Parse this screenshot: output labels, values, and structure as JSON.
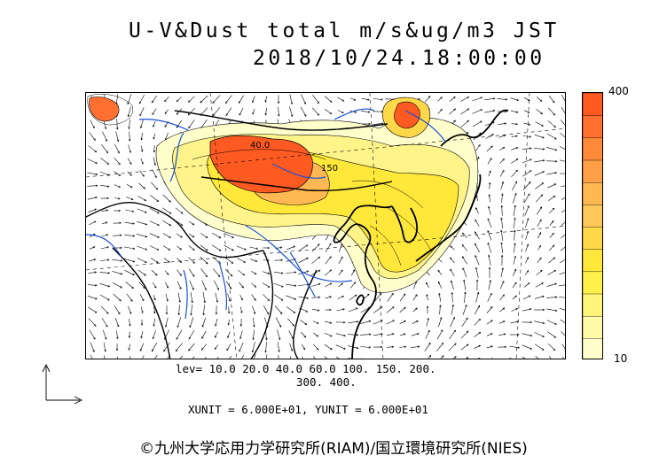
{
  "header": {
    "title": "U-V&Dust total m/s&ug/m3 JST",
    "datetime": "2018/10/24.18:00:00"
  },
  "colorbar": {
    "max_label": "400",
    "min_label": "10",
    "colors": [
      "#ffffcc",
      "#fffaa8",
      "#fff57a",
      "#fff04a",
      "#ffe83a",
      "#ffd84a",
      "#ffc85a",
      "#ffb852",
      "#ffa048",
      "#ff8a3a",
      "#ff7030",
      "#ff5a22"
    ]
  },
  "legend": {
    "levels_line1": "lev= 10.0 20.0 40.0 60.0 100. 150. 200.",
    "levels_line2": "300. 400.",
    "units": "XUNIT = 6.000E+01, YUNIT = 6.000E+01"
  },
  "map": {
    "contour_labels": [
      "40.0",
      "150"
    ],
    "colors": {
      "coast": "#000000",
      "border": "#000000",
      "river": "#1a4fd6",
      "vector": "#000000"
    }
  },
  "footer": {
    "credit": "©九州大学応用力学研究所(RIAM)/国立環境研究所(NIES)"
  }
}
